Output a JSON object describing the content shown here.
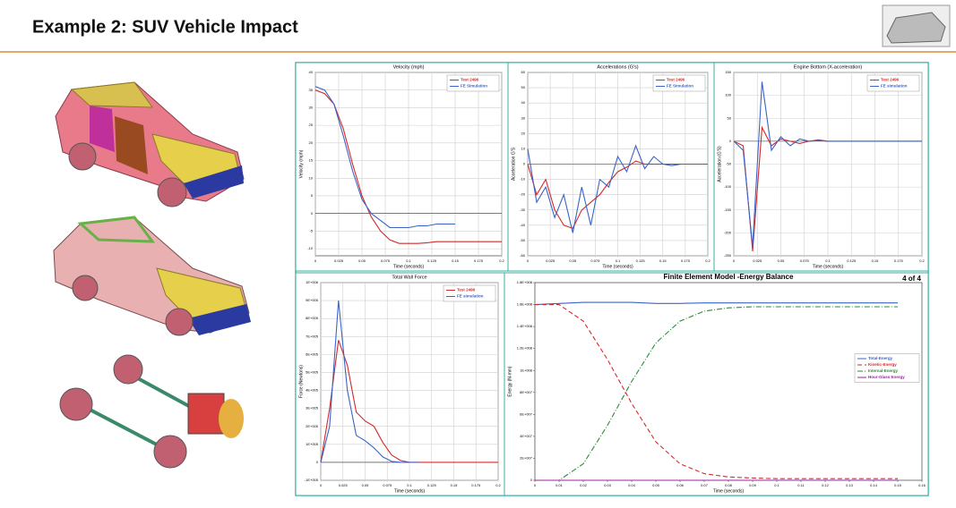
{
  "title": "Example 2: SUV Vehicle Impact",
  "page_number": "4 of 4",
  "chart_data": [
    {
      "type": "line",
      "title": "Velocity (mph)",
      "x_label": "Time (seconds)",
      "y_label": "Velocity (mph)",
      "x": [
        0,
        0.01,
        0.02,
        0.03,
        0.04,
        0.05,
        0.06,
        0.07,
        0.08,
        0.09,
        0.1,
        0.11,
        0.12,
        0.13,
        0.14,
        0.15,
        0.16,
        0.17,
        0.18,
        0.19,
        0.2
      ],
      "xlim": [
        0,
        0.2
      ],
      "xticks": [
        0,
        0.025,
        0.05,
        0.075,
        0.1,
        0.125,
        0.15,
        0.175,
        0.2
      ],
      "ylim": [
        -12,
        40
      ],
      "yticks": [
        -10,
        -5,
        0,
        5,
        10,
        15,
        20,
        25,
        30,
        35,
        40
      ],
      "grid": true,
      "legend": "upper right",
      "series": [
        {
          "name": "Test 2496",
          "color": "#d42a2a",
          "linestyle": "solid",
          "values": [
            35,
            34,
            31,
            24,
            14,
            5,
            -1,
            -5,
            -7.5,
            -8.5,
            -8.5,
            -8.5,
            -8.3,
            -8,
            -8,
            -8,
            -8,
            -8,
            -8,
            -8,
            -8
          ]
        },
        {
          "name": "FE Simulation",
          "color": "#3a64c8",
          "linestyle": "solid",
          "values": [
            36,
            35,
            31,
            22,
            12,
            4,
            0,
            -2,
            -4,
            -4,
            -4,
            -3.5,
            -3.5,
            -3,
            -3,
            -3,
            null,
            null,
            null,
            null,
            null
          ]
        }
      ]
    },
    {
      "type": "line",
      "title": "Accelerations (G's)",
      "x_label": "Time (seconds)",
      "y_label": "Acceleration G'S",
      "x": [
        0,
        0.01,
        0.02,
        0.03,
        0.04,
        0.05,
        0.06,
        0.07,
        0.08,
        0.09,
        0.1,
        0.11,
        0.12,
        0.13,
        0.14,
        0.15,
        0.16,
        0.17,
        0.18,
        0.19,
        0.2
      ],
      "xlim": [
        0,
        0.2
      ],
      "xticks": [
        0,
        0.025,
        0.05,
        0.075,
        0.1,
        0.125,
        0.15,
        0.175,
        0.2
      ],
      "ylim": [
        -60,
        60
      ],
      "yticks": [
        -60,
        -50,
        -40,
        -30,
        -20,
        -10,
        0,
        10,
        20,
        30,
        40,
        50,
        60
      ],
      "grid": true,
      "legend": "upper right",
      "series": [
        {
          "name": "Test 2496",
          "color": "#d42a2a",
          "linestyle": "solid",
          "values": [
            0,
            -20,
            -10,
            -30,
            -40,
            -42,
            -30,
            -25,
            -20,
            -12,
            -5,
            -2,
            2,
            0,
            0,
            0,
            0,
            0,
            0,
            0,
            0
          ]
        },
        {
          "name": "FE Simulation",
          "color": "#3a64c8",
          "linestyle": "solid",
          "values": [
            10,
            -25,
            -15,
            -35,
            -20,
            -45,
            -15,
            -40,
            -10,
            -15,
            5,
            -5,
            12,
            -3,
            5,
            0,
            -1,
            0,
            0,
            0,
            0
          ]
        }
      ]
    },
    {
      "type": "line",
      "title": "Engine Bottom (X-acceleration)",
      "x_label": "Time (seconds)",
      "y_label": "Acceleration (G'S)",
      "x": [
        0,
        0.01,
        0.02,
        0.03,
        0.04,
        0.05,
        0.06,
        0.07,
        0.08,
        0.09,
        0.1,
        0.11,
        0.12,
        0.13,
        0.14,
        0.15,
        0.16,
        0.17,
        0.18,
        0.19,
        0.2
      ],
      "xlim": [
        0,
        0.2
      ],
      "xticks": [
        0,
        0.025,
        0.05,
        0.075,
        0.1,
        0.125,
        0.15,
        0.175,
        0.2
      ],
      "ylim": [
        -250,
        150
      ],
      "yticks": [
        -250,
        -200,
        -150,
        -100,
        -50,
        0,
        50,
        100,
        150
      ],
      "grid": true,
      "legend": "upper right",
      "series": [
        {
          "name": "Test 2496",
          "color": "#d42a2a",
          "linestyle": "solid",
          "values": [
            0,
            -10,
            -240,
            30,
            -10,
            5,
            0,
            -5,
            0,
            3,
            0,
            0,
            0,
            0,
            0,
            0,
            0,
            0,
            0,
            0,
            0
          ]
        },
        {
          "name": "FE simulation",
          "color": "#3a64c8",
          "linestyle": "solid",
          "values": [
            0,
            -20,
            -230,
            130,
            -20,
            10,
            -10,
            5,
            0,
            2,
            0,
            0,
            0,
            0,
            0,
            0,
            0,
            0,
            0,
            0,
            0
          ]
        }
      ]
    },
    {
      "type": "line",
      "title": "Total Wall Force",
      "x_label": "Time (seconds)",
      "y_label": "Force (Newtons)",
      "x": [
        0,
        0.01,
        0.02,
        0.03,
        0.04,
        0.05,
        0.06,
        0.07,
        0.08,
        0.09,
        0.1,
        0.11,
        0.12,
        0.13,
        0.14,
        0.15,
        0.16,
        0.17,
        0.18,
        0.19,
        0.2
      ],
      "xlim": [
        0,
        0.2
      ],
      "xticks": [
        0,
        0.025,
        0.05,
        0.075,
        0.1,
        0.125,
        0.15,
        0.175,
        0.2
      ],
      "ylim": [
        -100000,
        1000000
      ],
      "yticks": [
        {
          "value": -100000,
          "label": "-1E+005"
        },
        0,
        {
          "value": 100000,
          "label": "1E+005"
        },
        {
          "value": 200000,
          "label": "2E+005"
        },
        {
          "value": 300000,
          "label": "3E+005"
        },
        {
          "value": 400000,
          "label": "4E+005"
        },
        {
          "value": 500000,
          "label": "5E+005"
        },
        {
          "value": 600000,
          "label": "6E+005"
        },
        {
          "value": 700000,
          "label": "7E+005"
        },
        {
          "value": 800000,
          "label": "8E+005"
        },
        {
          "value": 900000,
          "label": "9E+005"
        },
        {
          "value": 1000000,
          "label": "1E+006"
        }
      ],
      "grid": true,
      "legend": "upper right",
      "series": [
        {
          "name": "Test 2496",
          "color": "#d42a2a",
          "linestyle": "solid",
          "values": [
            0,
            300000,
            680000,
            540000,
            280000,
            230000,
            200000,
            110000,
            40000,
            10000,
            0,
            0,
            0,
            0,
            0,
            0,
            0,
            0,
            0,
            0,
            0
          ]
        },
        {
          "name": "FE simulation",
          "color": "#3a64c8",
          "linestyle": "solid",
          "values": [
            0,
            200000,
            900000,
            400000,
            150000,
            120000,
            80000,
            30000,
            5000,
            0,
            0,
            0,
            null,
            null,
            null,
            null,
            null,
            null,
            null,
            null,
            null
          ]
        }
      ]
    },
    {
      "type": "line",
      "title": "Finite Element Model -Energy Balance",
      "x_label": "Time (seconds)",
      "y_label": "Energy (N-mm)",
      "x": [
        0,
        0.01,
        0.02,
        0.03,
        0.04,
        0.05,
        0.06,
        0.07,
        0.08,
        0.09,
        0.1,
        0.11,
        0.12,
        0.13,
        0.14,
        0.15
      ],
      "xlim": [
        0,
        0.16
      ],
      "xticks": [
        0,
        0.01,
        0.02,
        0.03,
        0.04,
        0.05,
        0.06,
        0.07,
        0.08,
        0.09,
        0.1,
        0.11,
        0.12,
        0.13,
        0.14,
        0.15,
        0.16
      ],
      "ylim": [
        0,
        180000000
      ],
      "yticks": [
        0,
        {
          "value": 20000000,
          "label": "2E+007"
        },
        {
          "value": 40000000,
          "label": "4E+007"
        },
        {
          "value": 60000000,
          "label": "6E+007"
        },
        {
          "value": 80000000,
          "label": "8E+007"
        },
        {
          "value": 100000000,
          "label": "1E+008"
        },
        {
          "value": 120000000,
          "label": "1.2E+008"
        },
        {
          "value": 140000000,
          "label": "1.4E+008"
        },
        {
          "value": 160000000,
          "label": "1.6E+008"
        },
        {
          "value": 180000000,
          "label": "1.8E+008"
        }
      ],
      "grid": false,
      "legend": "center right",
      "series": [
        {
          "name": "Total-Energy",
          "color": "#3a64c8",
          "linestyle": "solid",
          "values": [
            160000000,
            161000000,
            162000000,
            162000000,
            162000000,
            161000000,
            161000000,
            161500000,
            161500000,
            161500000,
            161500000,
            161500000,
            161500000,
            161500000,
            161500000,
            161500000
          ]
        },
        {
          "name": "Kinetic-Energy",
          "color": "#d42a2a",
          "linestyle": "dashed",
          "values": [
            160000000,
            160000000,
            145000000,
            110000000,
            70000000,
            35000000,
            15000000,
            6000000,
            3000000,
            2000000,
            1500000,
            1500000,
            1500000,
            1500000,
            1500000,
            1500000
          ]
        },
        {
          "name": "Internal-Energy",
          "color": "#2e8b3a",
          "linestyle": "dashdot",
          "values": [
            0,
            0,
            15000000,
            50000000,
            90000000,
            125000000,
            145000000,
            154000000,
            157000000,
            158000000,
            158000000,
            158000000,
            158000000,
            158000000,
            158000000,
            158000000
          ]
        },
        {
          "name": "Hour-Glass Energy",
          "color": "#a020a0",
          "linestyle": "solid",
          "values": [
            0,
            0,
            0,
            0,
            0,
            0,
            0,
            0,
            0,
            0,
            0,
            0,
            0,
            0,
            0,
            0
          ]
        }
      ]
    }
  ]
}
